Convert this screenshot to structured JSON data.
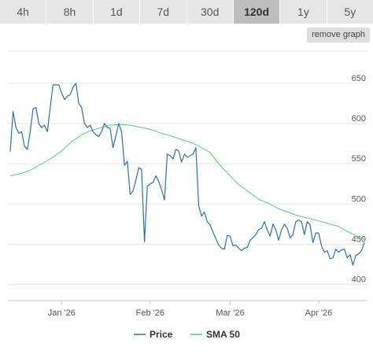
{
  "range_buttons": [
    {
      "label": "4h",
      "active": false
    },
    {
      "label": "8h",
      "active": false
    },
    {
      "label": "1d",
      "active": false
    },
    {
      "label": "7d",
      "active": false
    },
    {
      "label": "30d",
      "active": false
    },
    {
      "label": "120d",
      "active": true
    },
    {
      "label": "1y",
      "active": false
    },
    {
      "label": "5y",
      "active": false
    }
  ],
  "remove_graph_label": "remove graph",
  "colors": {
    "price": "#2f6fa7",
    "sma": "#4fd07a",
    "grid": "#e6e6e6",
    "axis": "#cccccc"
  },
  "chart_data": {
    "type": "line",
    "title": "",
    "xlabel": "",
    "ylabel": "",
    "ylim": [
      380,
      690
    ],
    "y_ticks": [
      400,
      450,
      500,
      550,
      600,
      650
    ],
    "x_ticks": [
      {
        "label": "Jan '26",
        "date": "2026-01-01"
      },
      {
        "label": "Feb '26",
        "date": "2026-02-01"
      },
      {
        "label": "Mar '26",
        "date": "2026-03-01"
      },
      {
        "label": "Apr '26",
        "date": "2026-04-01"
      }
    ],
    "xlim": [
      "2025-12-14",
      "2026-04-17"
    ],
    "grid": true,
    "legend": "bottom-center",
    "series": [
      {
        "name": "Price",
        "points": [
          [
            "2025-12-14",
            565
          ],
          [
            "2025-12-15",
            615
          ],
          [
            "2025-12-16",
            595
          ],
          [
            "2025-12-17",
            588
          ],
          [
            "2025-12-18",
            590
          ],
          [
            "2025-12-19",
            572
          ],
          [
            "2025-12-20",
            568
          ],
          [
            "2025-12-21",
            590
          ],
          [
            "2025-12-22",
            618
          ],
          [
            "2025-12-23",
            620
          ],
          [
            "2025-12-24",
            600
          ],
          [
            "2025-12-25",
            595
          ],
          [
            "2025-12-26",
            598
          ],
          [
            "2025-12-27",
            590
          ],
          [
            "2025-12-28",
            620
          ],
          [
            "2025-12-29",
            648
          ],
          [
            "2025-12-30",
            648
          ],
          [
            "2025-12-31",
            648
          ],
          [
            "2026-01-01",
            638
          ],
          [
            "2026-01-02",
            630
          ],
          [
            "2026-01-03",
            634
          ],
          [
            "2026-01-04",
            636
          ],
          [
            "2026-01-05",
            645
          ],
          [
            "2026-01-06",
            650
          ],
          [
            "2026-01-07",
            625
          ],
          [
            "2026-01-08",
            620
          ],
          [
            "2026-01-09",
            600
          ],
          [
            "2026-01-10",
            595
          ],
          [
            "2026-01-11",
            598
          ],
          [
            "2026-01-12",
            590
          ],
          [
            "2026-01-13",
            586
          ],
          [
            "2026-01-14",
            584
          ],
          [
            "2026-01-15",
            590
          ],
          [
            "2026-01-16",
            600
          ],
          [
            "2026-01-17",
            595
          ],
          [
            "2026-01-18",
            594
          ],
          [
            "2026-01-19",
            570
          ],
          [
            "2026-01-20",
            585
          ],
          [
            "2026-01-21",
            600
          ],
          [
            "2026-01-22",
            590
          ],
          [
            "2026-01-23",
            548
          ],
          [
            "2026-01-24",
            553
          ],
          [
            "2026-01-25",
            512
          ],
          [
            "2026-01-26",
            516
          ],
          [
            "2026-01-27",
            530
          ],
          [
            "2026-01-28",
            545
          ],
          [
            "2026-01-29",
            543
          ],
          [
            "2026-01-30",
            453
          ],
          [
            "2026-01-31",
            522
          ],
          [
            "2026-02-01",
            525
          ],
          [
            "2026-02-02",
            527
          ],
          [
            "2026-02-03",
            535
          ],
          [
            "2026-02-04",
            528
          ],
          [
            "2026-02-05",
            518
          ],
          [
            "2026-02-06",
            505
          ],
          [
            "2026-02-07",
            562
          ],
          [
            "2026-02-08",
            560
          ],
          [
            "2026-02-09",
            556
          ],
          [
            "2026-02-10",
            568
          ],
          [
            "2026-02-11",
            566
          ],
          [
            "2026-02-12",
            552
          ],
          [
            "2026-02-13",
            562
          ],
          [
            "2026-02-14",
            558
          ],
          [
            "2026-02-15",
            560
          ],
          [
            "2026-02-16",
            562
          ],
          [
            "2026-02-17",
            570
          ],
          [
            "2026-02-18",
            498
          ],
          [
            "2026-02-19",
            485
          ],
          [
            "2026-02-20",
            490
          ],
          [
            "2026-02-21",
            478
          ],
          [
            "2026-02-22",
            474
          ],
          [
            "2026-02-23",
            465
          ],
          [
            "2026-02-24",
            457
          ],
          [
            "2026-02-25",
            449
          ],
          [
            "2026-02-26",
            445
          ],
          [
            "2026-02-27",
            444
          ],
          [
            "2026-02-28",
            461
          ],
          [
            "2026-03-01",
            460
          ],
          [
            "2026-03-02",
            448
          ],
          [
            "2026-03-03",
            449
          ],
          [
            "2026-03-04",
            445
          ],
          [
            "2026-03-05",
            442
          ],
          [
            "2026-03-06",
            445
          ],
          [
            "2026-03-07",
            446
          ],
          [
            "2026-03-08",
            455
          ],
          [
            "2026-03-09",
            458
          ],
          [
            "2026-03-10",
            462
          ],
          [
            "2026-03-11",
            468
          ],
          [
            "2026-03-12",
            470
          ],
          [
            "2026-03-13",
            478
          ],
          [
            "2026-03-14",
            468
          ],
          [
            "2026-03-15",
            460
          ],
          [
            "2026-03-16",
            475
          ],
          [
            "2026-03-17",
            468
          ],
          [
            "2026-03-18",
            455
          ],
          [
            "2026-03-19",
            468
          ],
          [
            "2026-03-20",
            475
          ],
          [
            "2026-03-21",
            470
          ],
          [
            "2026-03-22",
            458
          ],
          [
            "2026-03-23",
            462
          ],
          [
            "2026-03-24",
            478
          ],
          [
            "2026-03-25",
            480
          ],
          [
            "2026-03-26",
            478
          ],
          [
            "2026-03-27",
            462
          ],
          [
            "2026-03-28",
            478
          ],
          [
            "2026-03-29",
            474
          ],
          [
            "2026-03-30",
            452
          ],
          [
            "2026-03-31",
            464
          ],
          [
            "2026-04-01",
            464
          ],
          [
            "2026-04-02",
            448
          ],
          [
            "2026-04-03",
            440
          ],
          [
            "2026-04-04",
            442
          ],
          [
            "2026-04-05",
            432
          ],
          [
            "2026-04-06",
            433
          ],
          [
            "2026-04-07",
            444
          ],
          [
            "2026-04-08",
            440
          ],
          [
            "2026-04-09",
            443
          ],
          [
            "2026-04-10",
            444
          ],
          [
            "2026-04-11",
            433
          ],
          [
            "2026-04-12",
            437
          ],
          [
            "2026-04-13",
            424
          ],
          [
            "2026-04-14",
            436
          ],
          [
            "2026-04-15",
            438
          ],
          [
            "2026-04-16",
            442
          ],
          [
            "2026-04-17",
            452
          ]
        ]
      },
      {
        "name": "SMA 50",
        "points": [
          [
            "2025-12-14",
            535
          ],
          [
            "2025-12-18",
            538
          ],
          [
            "2025-12-21",
            542
          ],
          [
            "2025-12-25",
            550
          ],
          [
            "2025-12-28",
            556
          ],
          [
            "2026-01-01",
            566
          ],
          [
            "2026-01-04",
            576
          ],
          [
            "2026-01-08",
            586
          ],
          [
            "2026-01-11",
            591
          ],
          [
            "2026-01-15",
            595
          ],
          [
            "2026-01-18",
            598
          ],
          [
            "2026-01-22",
            599
          ],
          [
            "2026-01-25",
            598
          ],
          [
            "2026-01-29",
            595
          ],
          [
            "2026-02-01",
            593
          ],
          [
            "2026-02-05",
            588
          ],
          [
            "2026-02-08",
            585
          ],
          [
            "2026-02-12",
            580
          ],
          [
            "2026-02-15",
            577
          ],
          [
            "2026-02-18",
            572
          ],
          [
            "2026-02-22",
            564
          ],
          [
            "2026-02-25",
            550
          ],
          [
            "2026-03-01",
            535
          ],
          [
            "2026-03-04",
            524
          ],
          [
            "2026-03-08",
            514
          ],
          [
            "2026-03-11",
            506
          ],
          [
            "2026-03-15",
            500
          ],
          [
            "2026-03-18",
            494
          ],
          [
            "2026-03-22",
            489
          ],
          [
            "2026-03-25",
            485
          ],
          [
            "2026-03-29",
            482
          ],
          [
            "2026-04-01",
            479
          ],
          [
            "2026-04-04",
            476
          ],
          [
            "2026-04-08",
            472
          ],
          [
            "2026-04-11",
            466
          ],
          [
            "2026-04-15",
            459
          ],
          [
            "2026-04-17",
            456
          ]
        ]
      }
    ]
  }
}
